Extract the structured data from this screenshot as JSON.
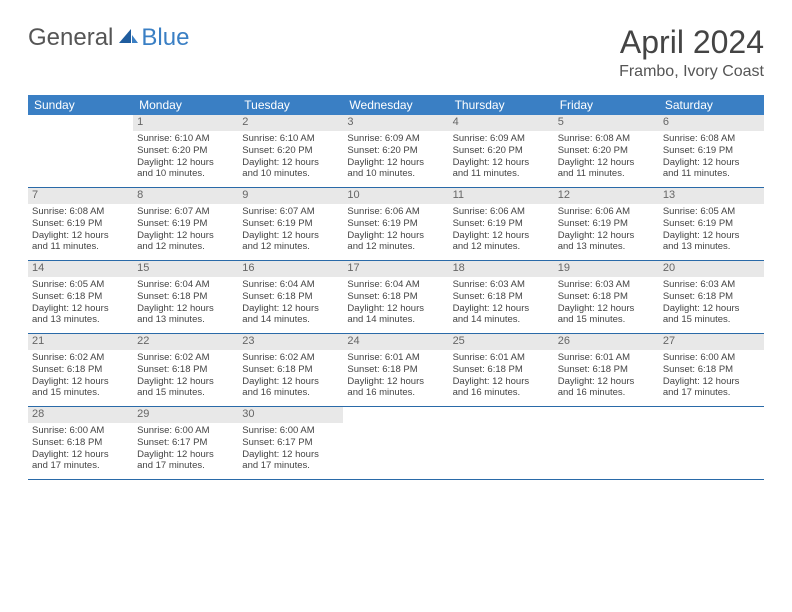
{
  "logo": {
    "general": "General",
    "blue": "Blue"
  },
  "title": "April 2024",
  "location": "Frambo, Ivory Coast",
  "colors": {
    "header_bg": "#3a7fc4",
    "header_text": "#ffffff",
    "day_num_bg": "#e8e8e8",
    "day_num_text": "#666666",
    "body_text": "#444444",
    "rule": "#2a6aa8"
  },
  "weekdays": [
    "Sunday",
    "Monday",
    "Tuesday",
    "Wednesday",
    "Thursday",
    "Friday",
    "Saturday"
  ],
  "weeks": [
    [
      {
        "n": "",
        "l": [
          "",
          "",
          "",
          ""
        ]
      },
      {
        "n": "1",
        "l": [
          "Sunrise: 6:10 AM",
          "Sunset: 6:20 PM",
          "Daylight: 12 hours",
          "and 10 minutes."
        ]
      },
      {
        "n": "2",
        "l": [
          "Sunrise: 6:10 AM",
          "Sunset: 6:20 PM",
          "Daylight: 12 hours",
          "and 10 minutes."
        ]
      },
      {
        "n": "3",
        "l": [
          "Sunrise: 6:09 AM",
          "Sunset: 6:20 PM",
          "Daylight: 12 hours",
          "and 10 minutes."
        ]
      },
      {
        "n": "4",
        "l": [
          "Sunrise: 6:09 AM",
          "Sunset: 6:20 PM",
          "Daylight: 12 hours",
          "and 11 minutes."
        ]
      },
      {
        "n": "5",
        "l": [
          "Sunrise: 6:08 AM",
          "Sunset: 6:20 PM",
          "Daylight: 12 hours",
          "and 11 minutes."
        ]
      },
      {
        "n": "6",
        "l": [
          "Sunrise: 6:08 AM",
          "Sunset: 6:19 PM",
          "Daylight: 12 hours",
          "and 11 minutes."
        ]
      }
    ],
    [
      {
        "n": "7",
        "l": [
          "Sunrise: 6:08 AM",
          "Sunset: 6:19 PM",
          "Daylight: 12 hours",
          "and 11 minutes."
        ]
      },
      {
        "n": "8",
        "l": [
          "Sunrise: 6:07 AM",
          "Sunset: 6:19 PM",
          "Daylight: 12 hours",
          "and 12 minutes."
        ]
      },
      {
        "n": "9",
        "l": [
          "Sunrise: 6:07 AM",
          "Sunset: 6:19 PM",
          "Daylight: 12 hours",
          "and 12 minutes."
        ]
      },
      {
        "n": "10",
        "l": [
          "Sunrise: 6:06 AM",
          "Sunset: 6:19 PM",
          "Daylight: 12 hours",
          "and 12 minutes."
        ]
      },
      {
        "n": "11",
        "l": [
          "Sunrise: 6:06 AM",
          "Sunset: 6:19 PM",
          "Daylight: 12 hours",
          "and 12 minutes."
        ]
      },
      {
        "n": "12",
        "l": [
          "Sunrise: 6:06 AM",
          "Sunset: 6:19 PM",
          "Daylight: 12 hours",
          "and 13 minutes."
        ]
      },
      {
        "n": "13",
        "l": [
          "Sunrise: 6:05 AM",
          "Sunset: 6:19 PM",
          "Daylight: 12 hours",
          "and 13 minutes."
        ]
      }
    ],
    [
      {
        "n": "14",
        "l": [
          "Sunrise: 6:05 AM",
          "Sunset: 6:18 PM",
          "Daylight: 12 hours",
          "and 13 minutes."
        ]
      },
      {
        "n": "15",
        "l": [
          "Sunrise: 6:04 AM",
          "Sunset: 6:18 PM",
          "Daylight: 12 hours",
          "and 13 minutes."
        ]
      },
      {
        "n": "16",
        "l": [
          "Sunrise: 6:04 AM",
          "Sunset: 6:18 PM",
          "Daylight: 12 hours",
          "and 14 minutes."
        ]
      },
      {
        "n": "17",
        "l": [
          "Sunrise: 6:04 AM",
          "Sunset: 6:18 PM",
          "Daylight: 12 hours",
          "and 14 minutes."
        ]
      },
      {
        "n": "18",
        "l": [
          "Sunrise: 6:03 AM",
          "Sunset: 6:18 PM",
          "Daylight: 12 hours",
          "and 14 minutes."
        ]
      },
      {
        "n": "19",
        "l": [
          "Sunrise: 6:03 AM",
          "Sunset: 6:18 PM",
          "Daylight: 12 hours",
          "and 15 minutes."
        ]
      },
      {
        "n": "20",
        "l": [
          "Sunrise: 6:03 AM",
          "Sunset: 6:18 PM",
          "Daylight: 12 hours",
          "and 15 minutes."
        ]
      }
    ],
    [
      {
        "n": "21",
        "l": [
          "Sunrise: 6:02 AM",
          "Sunset: 6:18 PM",
          "Daylight: 12 hours",
          "and 15 minutes."
        ]
      },
      {
        "n": "22",
        "l": [
          "Sunrise: 6:02 AM",
          "Sunset: 6:18 PM",
          "Daylight: 12 hours",
          "and 15 minutes."
        ]
      },
      {
        "n": "23",
        "l": [
          "Sunrise: 6:02 AM",
          "Sunset: 6:18 PM",
          "Daylight: 12 hours",
          "and 16 minutes."
        ]
      },
      {
        "n": "24",
        "l": [
          "Sunrise: 6:01 AM",
          "Sunset: 6:18 PM",
          "Daylight: 12 hours",
          "and 16 minutes."
        ]
      },
      {
        "n": "25",
        "l": [
          "Sunrise: 6:01 AM",
          "Sunset: 6:18 PM",
          "Daylight: 12 hours",
          "and 16 minutes."
        ]
      },
      {
        "n": "26",
        "l": [
          "Sunrise: 6:01 AM",
          "Sunset: 6:18 PM",
          "Daylight: 12 hours",
          "and 16 minutes."
        ]
      },
      {
        "n": "27",
        "l": [
          "Sunrise: 6:00 AM",
          "Sunset: 6:18 PM",
          "Daylight: 12 hours",
          "and 17 minutes."
        ]
      }
    ],
    [
      {
        "n": "28",
        "l": [
          "Sunrise: 6:00 AM",
          "Sunset: 6:18 PM",
          "Daylight: 12 hours",
          "and 17 minutes."
        ]
      },
      {
        "n": "29",
        "l": [
          "Sunrise: 6:00 AM",
          "Sunset: 6:17 PM",
          "Daylight: 12 hours",
          "and 17 minutes."
        ]
      },
      {
        "n": "30",
        "l": [
          "Sunrise: 6:00 AM",
          "Sunset: 6:17 PM",
          "Daylight: 12 hours",
          "and 17 minutes."
        ]
      },
      {
        "n": "",
        "l": [
          "",
          "",
          "",
          ""
        ]
      },
      {
        "n": "",
        "l": [
          "",
          "",
          "",
          ""
        ]
      },
      {
        "n": "",
        "l": [
          "",
          "",
          "",
          ""
        ]
      },
      {
        "n": "",
        "l": [
          "",
          "",
          "",
          ""
        ]
      }
    ]
  ]
}
